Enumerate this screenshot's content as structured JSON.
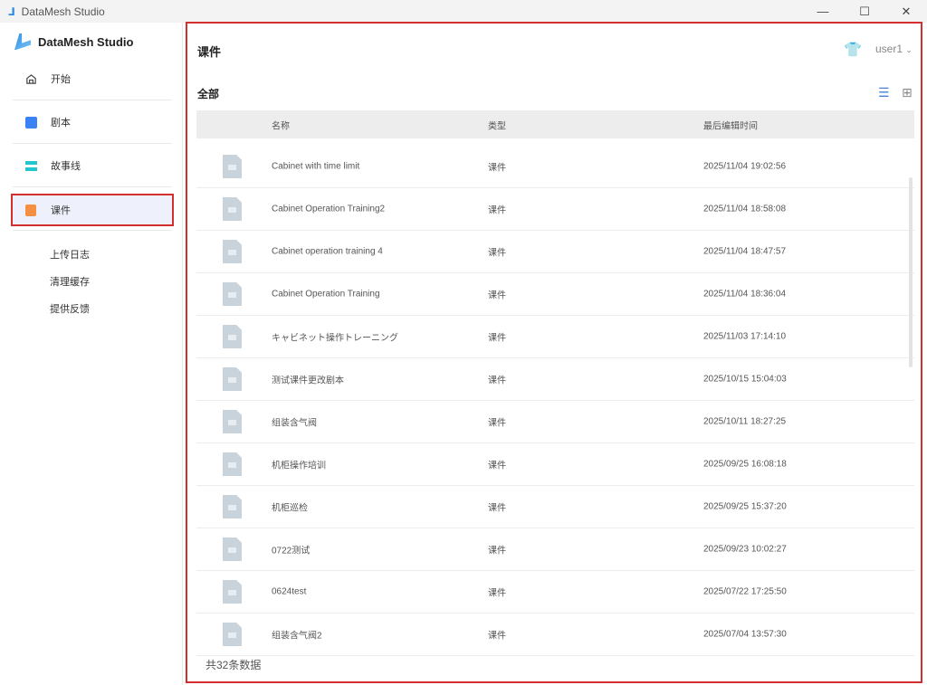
{
  "window": {
    "title": "DataMesh Studio",
    "controls": [
      "—",
      "☐",
      "✕"
    ]
  },
  "sidebar": {
    "brand": "DataMesh Studio",
    "items": [
      {
        "label": "开始",
        "icon": "home-icon"
      },
      {
        "label": "剧本",
        "icon": "script-icon",
        "color": "#3b82f6"
      },
      {
        "label": "故事线",
        "icon": "storyline-icon",
        "color": "#22c5d0"
      },
      {
        "label": "课件",
        "icon": "courseware-icon",
        "color": "#f59042",
        "active": true
      }
    ],
    "links": [
      "上传日志",
      "清理缓存",
      "提供反馈"
    ]
  },
  "header": {
    "title": "课件",
    "user": "user1"
  },
  "section": {
    "title": "全部",
    "view": "list"
  },
  "table": {
    "columns": [
      "名称",
      "类型",
      "最后编辑时间"
    ],
    "rows": [
      [
        "Cabinet with time limit",
        "课件",
        "2025/11/04 19:02:56"
      ],
      [
        "Cabinet Operation Training2",
        "课件",
        "2025/11/04 18:58:08"
      ],
      [
        "Cabinet operation training 4",
        "课件",
        "2025/11/04 18:47:57"
      ],
      [
        "Cabinet Operation Training",
        "课件",
        "2025/11/04 18:36:04"
      ],
      [
        "キャビネット操作トレーニング",
        "课件",
        "2025/11/03 17:14:10"
      ],
      [
        "测试课件更改剧本",
        "课件",
        "2025/10/15 15:04:03"
      ],
      [
        "组装含气阀",
        "课件",
        "2025/10/11 18:27:25"
      ],
      [
        "机柜操作培训",
        "课件",
        "2025/09/25 16:08:18"
      ],
      [
        "机柜巡检",
        "课件",
        "2025/09/25 15:37:20"
      ],
      [
        "0722测试",
        "课件",
        "2025/09/23 10:02:27"
      ],
      [
        "0624test",
        "课件",
        "2025/07/22 17:25:50"
      ],
      [
        "组装含气阀2",
        "课件",
        "2025/07/04 13:57:30"
      ]
    ]
  },
  "footer": "共32条数据",
  "colors": {
    "accent": "#4a7fd6",
    "annotation": "#d32f2f"
  }
}
